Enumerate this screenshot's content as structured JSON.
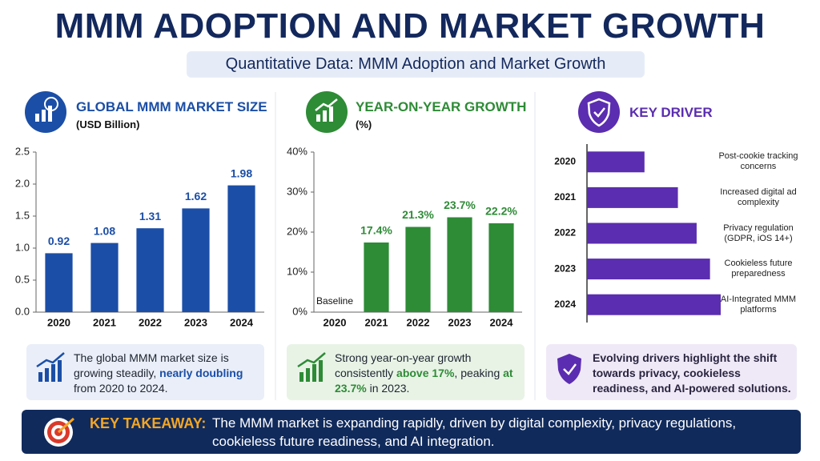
{
  "title": "MMM ADOPTION AND MARKET GROWTH",
  "subtitle": "Quantitative Data: MMM Adoption and Market Growth",
  "chart_data": [
    {
      "type": "bar",
      "title": "GLOBAL MMM MARKET SIZE",
      "subtitle": "(USD Billion)",
      "categories": [
        "2020",
        "2021",
        "2022",
        "2023",
        "2024"
      ],
      "values": [
        0.92,
        1.08,
        1.31,
        1.62,
        1.98
      ],
      "color": "#1b4ea6",
      "ylim": [
        0,
        2.5
      ],
      "yticks": [
        {
          "value": 0,
          "label": "0.0"
        },
        0.5,
        {
          "value": 1,
          "label": "1.0"
        },
        1.5,
        {
          "value": 2,
          "label": "2.0"
        },
        2.5
      ],
      "grid": false,
      "caption": [
        "The global MMM market size is growing steadily, ",
        "nearly doubling",
        " from 2020 to 2024."
      ]
    },
    {
      "type": "bar",
      "title": "YEAR-ON-YEAR GROWTH",
      "subtitle": "(%)",
      "categories": [
        "2020",
        "2021",
        "2022",
        "2023",
        "2024"
      ],
      "values": [
        null,
        17.4,
        21.3,
        23.7,
        22.2
      ],
      "value_labels": [
        "Baseline",
        "17.4%",
        "21.3%",
        "23.7%",
        "22.2%"
      ],
      "color": "#2e8b36",
      "ylim": [
        0,
        40
      ],
      "yticks": [
        {
          "value": 0,
          "label": "0%"
        },
        {
          "value": 10,
          "label": "10%"
        },
        {
          "value": 20,
          "label": "20%"
        },
        {
          "value": 30,
          "label": "30%"
        },
        {
          "value": 40,
          "label": "40%"
        }
      ],
      "grid": false,
      "caption": [
        "Strong year-on-year growth consistently ",
        "above 17%",
        ", peaking ",
        "at 23.7%",
        " in 2023."
      ]
    },
    {
      "type": "bar",
      "horizontal": true,
      "title": "KEY DRIVER",
      "categories": [
        "2020",
        "2021",
        "2022",
        "2023",
        "2024"
      ],
      "values": [
        43,
        68,
        82,
        92,
        100
      ],
      "color": "#5b2db0",
      "xlim": [
        0,
        100
      ],
      "labels": [
        "Post-cookie tracking concerns",
        "Increased digital ad complexity",
        "Privacy regulation (GDPR, iOS 14+)",
        "Cookieless future preparedness",
        "AI-Integrated MMM platforms"
      ],
      "caption": [
        "Evolving drivers highlight the shift towards privacy, cookieless readiness, and AI-powered solutions."
      ]
    }
  ],
  "takeaway": {
    "label": "KEY TAKEAWAY:",
    "text": "The MMM market is expanding rapidly, driven by digital complexity, privacy regulations, cookieless future readiness, and AI integration."
  }
}
